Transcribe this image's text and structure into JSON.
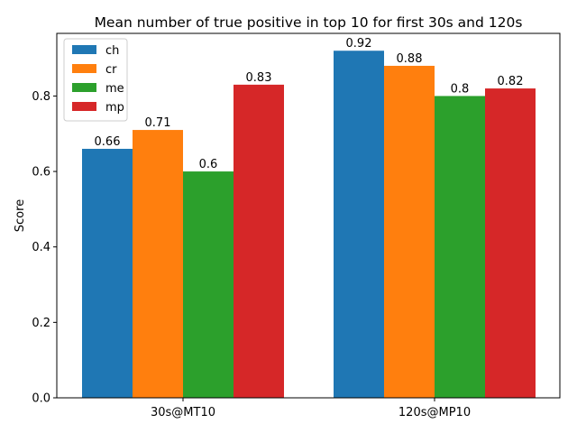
{
  "chart_data": {
    "type": "bar",
    "title": "Mean number of true positive in top 10 for first 30s and 120s",
    "xlabel": "",
    "ylabel": "Score",
    "categories": [
      "30s@MT10",
      "120s@MP10"
    ],
    "series": [
      {
        "name": "ch",
        "color": "#1f77b4",
        "values": [
          0.66,
          0.92
        ],
        "labels": [
          "0.66",
          "0.92"
        ]
      },
      {
        "name": "cr",
        "color": "#ff7f0e",
        "values": [
          0.71,
          0.88
        ],
        "labels": [
          "0.71",
          "0.88"
        ]
      },
      {
        "name": "me",
        "color": "#2ca02c",
        "values": [
          0.6,
          0.8
        ],
        "labels": [
          "0.6",
          "0.8"
        ]
      },
      {
        "name": "mp",
        "color": "#d62728",
        "values": [
          0.83,
          0.82
        ],
        "labels": [
          "0.83",
          "0.82"
        ]
      }
    ],
    "ylim": [
      0,
      0.966
    ],
    "yticks": [
      0.0,
      0.2,
      0.4,
      0.6,
      0.8
    ],
    "ytick_labels": [
      "0.0",
      "0.2",
      "0.4",
      "0.6",
      "0.8"
    ],
    "grid": false,
    "legend_position": "top-left"
  }
}
